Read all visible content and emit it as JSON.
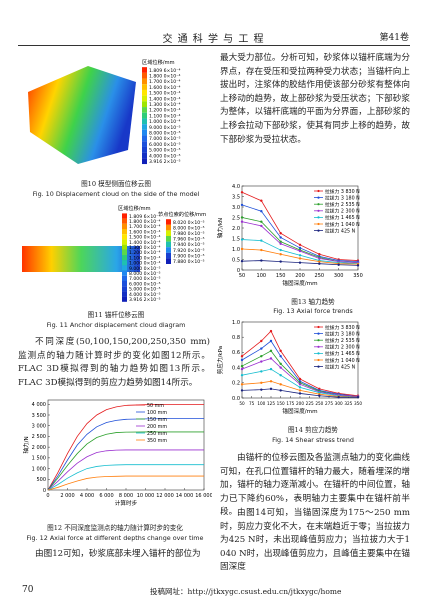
{
  "header": {
    "journal": "交 通 科 学 与 工 程",
    "volume": "第41卷"
  },
  "figures": {
    "fig10": {
      "legend_title": "区域位移/mm",
      "legend_values": [
        "1.809 6×10⁻⁴",
        "1.800 0×10⁻⁴",
        "1.700 0×10⁻⁴",
        "1.600 0×10⁻⁴",
        "1.500 0×10⁻⁴",
        "1.400 0×10⁻⁴",
        "1.300 0×10⁻⁴",
        "1.200 0×10⁻⁴",
        "1.100 0×10⁻⁴",
        "1.000 0×10⁻⁴",
        "9.000 0×10⁻⁵",
        "8.000 0×10⁻⁵",
        "7.000 0×10⁻⁵",
        "6.000 0×10⁻⁵",
        "5.000 0×10⁻⁵",
        "4.000 0×10⁻⁵",
        "3.916 2×10⁻⁵"
      ],
      "caption_cn": "图10  模型侧面位移云图",
      "caption_en": "Fig. 10  Displacement cloud on the side of the model"
    },
    "fig11": {
      "legend_title": "区域位移/mm",
      "legend_values": [
        "1.809 6×10⁻⁴",
        "1.800 0×10⁻⁴",
        "1.700 0×10⁻⁴",
        "1.600 0×10⁻⁴",
        "1.500 0×10⁻⁴",
        "1.400 0×10⁻⁴",
        "1.300 0×10⁻⁴",
        "1.200 0×10⁻⁴",
        "1.100 0×10⁻⁴",
        "1.000 0×10⁻⁴",
        "9.000 0×10⁻⁵",
        "8.000 0×10⁻⁵",
        "7.000 0×10⁻⁵",
        "6.000 0×10⁻⁵",
        "5.000 0×10⁻⁵",
        "4.000 0×10⁻⁵",
        "3.916 2×10⁻⁵"
      ],
      "legend2_title": "节点位索的位移/mm",
      "legend2_values": [
        "8.020 0×10⁻⁵",
        "8.000 0×10⁻⁵",
        "7.980 0×10⁻⁵",
        "7.960 0×10⁻⁵",
        "7.940 0×10⁻⁵",
        "7.920 0×10⁻⁵",
        "7.900 0×10⁻⁵",
        "7.880 0×10⁻⁵"
      ],
      "caption_cn": "图11  锚杆位移云图",
      "caption_en": "Fig. 11  Anchor displacement cloud diagram"
    }
  },
  "paragraphs": {
    "left_1": "不同深度(50,100,150,200,250,350 mm)监测点的轴力随计算时步的变化如图12所示。FLAC 3D模拟得到的轴力趋势如图13所示。FLAC 3D模拟得到的剪应力趋势如图14所示。",
    "left_2": "由图12可知，砂浆底部未埋入锚杆的部位为",
    "right_1": "最大受力部位。分析可知，砂浆体以锚杆底端为分界点，存在受压和受拉两种受力状态；当锚杆向上拔出时，注浆体的胶结作用使该部分砂浆有整体向上移动的趋势，故上部砂浆为受压状态；下部砂浆为整体，以锚杆底端的平面为分界面，上部砂浆的上移会拉动下部砂浆，使其有同步上移的趋势，故下部砂浆为受拉状态。",
    "right_2": "由锚杆的位移云图及各监测点轴力的变化曲线可知，在孔口位置锚杆的轴力最大，随着埋深的增加，锚杆的轴力逐渐减小。在锚杆的中间位置，轴力已下降约60%，表明轴力主要集中在锚杆前半段。",
    "right_3": "由图14可知，当锚固深度为175～250 mm时，剪应力变化不大，在末端趋近于零；当拉拔力为425 N时，未出现峰值剪应力；当拉拔力大于1 040 N时，出现峰值剪应力，且峰值主要集中在锚固深度"
  },
  "chart_data": [
    {
      "type": "line",
      "caption_cn": "图12  不同深度监测点的轴力随计算时步的变化",
      "caption_en": "Fig. 12  Axial force at different depths change over time",
      "x_label": "计算时步",
      "y_label": "轴力/N",
      "markers": false,
      "legend": "upper center",
      "x": [
        0,
        1000,
        2000,
        3000,
        4000,
        5000,
        6000,
        7000,
        8000,
        10000,
        12000,
        14000,
        16000
      ],
      "xlim": [
        0,
        16000
      ],
      "xticks": [
        0,
        {
          "value": 2000,
          "label": "2 000"
        },
        {
          "value": 4000,
          "label": "4 000"
        },
        {
          "value": 6000,
          "label": "6 000"
        },
        {
          "value": 8000,
          "label": "8 000"
        },
        {
          "value": 10000,
          "label": "10 000"
        },
        {
          "value": 12000,
          "label": "12 000"
        },
        {
          "value": 14000,
          "label": "14 000"
        },
        {
          "value": 16000,
          "label": "16 000"
        }
      ],
      "ylim": [
        0,
        4200
      ],
      "yticks": [
        0,
        500,
        {
          "value": 1000,
          "label": "1 000"
        },
        {
          "value": 1500,
          "label": "1 500"
        },
        {
          "value": 2000,
          "label": "2 000"
        },
        {
          "value": 2500,
          "label": "2 500"
        },
        {
          "value": 3000,
          "label": "3 000"
        },
        {
          "value": 3500,
          "label": "3 500"
        },
        {
          "value": 4000,
          "label": "4 000"
        }
      ],
      "series": [
        {
          "name": "50 mm",
          "color": "#e41a1c",
          "values": [
            0,
            800,
            1700,
            2500,
            3100,
            3500,
            3750,
            3880,
            3950,
            3980,
            3990,
            3990,
            3990
          ]
        },
        {
          "name": "100 mm",
          "color": "#1f4fd8",
          "values": [
            0,
            650,
            1400,
            2100,
            2600,
            2950,
            3150,
            3250,
            3300,
            3320,
            3330,
            3330,
            3330
          ]
        },
        {
          "name": "150 mm",
          "color": "#2ca02c",
          "values": [
            0,
            550,
            1150,
            1700,
            2150,
            2450,
            2600,
            2680,
            2700,
            2710,
            2710,
            2710,
            2710
          ]
        },
        {
          "name": "200 mm",
          "color": "#9b30d0",
          "values": [
            0,
            400,
            850,
            1250,
            1550,
            1750,
            1830,
            1860,
            1870,
            1870,
            1870,
            1870,
            1870
          ]
        },
        {
          "name": "250 mm",
          "color": "#17becf",
          "values": [
            0,
            250,
            550,
            800,
            1000,
            1100,
            1150,
            1170,
            1180,
            1180,
            1180,
            1180,
            1180
          ]
        },
        {
          "name": "350 mm",
          "color": "#ff7f0e",
          "values": [
            0,
            120,
            280,
            420,
            540,
            600,
            630,
            640,
            650,
            650,
            650,
            650,
            650
          ]
        }
      ]
    },
    {
      "type": "line",
      "caption_cn": "图13  轴力趋势",
      "caption_en": "Fig. 13  Axial force trends",
      "x_label": "锚固深度/mm",
      "y_label": "轴力/kN",
      "markers": true,
      "legend": "upper right",
      "x": [
        50,
        100,
        150,
        200,
        250,
        300,
        350
      ],
      "xlim": [
        50,
        350
      ],
      "xticks": [
        50,
        100,
        150,
        200,
        250,
        300,
        350
      ],
      "ylim": [
        0,
        4
      ],
      "yticks": [
        0,
        0.5,
        {
          "value": 1,
          "label": "1.0"
        },
        1.5,
        {
          "value": 2,
          "label": "2.0"
        },
        2.5,
        {
          "value": 3,
          "label": "3.0"
        },
        3.5,
        {
          "value": 4,
          "label": "4.0"
        }
      ],
      "series": [
        {
          "name": "拉拔力 3 830 N",
          "color": "#e41a1c",
          "values": [
            3.7,
            3.3,
            1.75,
            1.2,
            0.75,
            0.5,
            0.45
          ]
        },
        {
          "name": "拉拔力 3 180 N",
          "color": "#1f4fd8",
          "values": [
            3.1,
            2.8,
            1.55,
            1.05,
            0.65,
            0.45,
            0.4
          ]
        },
        {
          "name": "拉拔力 2 535 N",
          "color": "#2ca02c",
          "values": [
            2.5,
            2.3,
            1.35,
            0.95,
            0.6,
            0.4,
            0.35
          ]
        },
        {
          "name": "拉拔力 2 300 N",
          "color": "#9b30d0",
          "values": [
            2.3,
            2.1,
            1.25,
            0.9,
            0.55,
            0.4,
            0.35
          ]
        },
        {
          "name": "拉拔力 1 465 N",
          "color": "#17becf",
          "values": [
            1.45,
            1.4,
            0.95,
            0.7,
            0.45,
            0.35,
            0.3
          ]
        },
        {
          "name": "拉拔力 1 040 N",
          "color": "#ff7f0e",
          "values": [
            1.0,
            0.95,
            0.75,
            0.55,
            0.4,
            0.3,
            0.28
          ]
        },
        {
          "name": "拉拔力  425 N",
          "color": "#1a237e",
          "values": [
            0.42,
            0.45,
            0.4,
            0.35,
            0.3,
            0.25,
            0.22
          ]
        }
      ]
    },
    {
      "type": "line",
      "caption_cn": "图14  剪应力趋势",
      "caption_en": "Fig. 14  Shear stress trend",
      "x_label": "锚固深度/mm",
      "y_label": "剪应力/kPa",
      "markers": true,
      "legend": "upper right",
      "x": [
        50,
        100,
        125,
        150,
        200,
        250,
        300,
        350
      ],
      "xlim": [
        50,
        350
      ],
      "xticks": [
        50,
        75,
        100,
        125,
        150,
        175,
        200,
        225,
        250,
        275,
        300,
        325,
        350
      ],
      "ylim": [
        0,
        1
      ],
      "yticks": [
        {
          "value": 0,
          "label": "0.0"
        },
        0.2,
        0.4,
        0.6,
        0.8,
        {
          "value": 1,
          "label": "1.0"
        }
      ],
      "series": [
        {
          "name": "拉拔力 3 830 N",
          "color": "#e41a1c",
          "values": [
            0.55,
            0.75,
            0.88,
            0.62,
            0.25,
            0.12,
            0.06,
            0.03
          ]
        },
        {
          "name": "拉拔力 3 180 N",
          "color": "#1f4fd8",
          "values": [
            0.5,
            0.65,
            0.75,
            0.55,
            0.22,
            0.1,
            0.05,
            0.02
          ]
        },
        {
          "name": "拉拔力 2 535 N",
          "color": "#2ca02c",
          "values": [
            0.42,
            0.55,
            0.62,
            0.45,
            0.2,
            0.09,
            0.04,
            0.02
          ]
        },
        {
          "name": "拉拔力 2 300 N",
          "color": "#9b30d0",
          "values": [
            0.38,
            0.48,
            0.52,
            0.4,
            0.18,
            0.08,
            0.04,
            0.02
          ]
        },
        {
          "name": "拉拔力 1 465 N",
          "color": "#17becf",
          "values": [
            0.3,
            0.35,
            0.38,
            0.3,
            0.14,
            0.07,
            0.03,
            0.01
          ]
        },
        {
          "name": "拉拔力 1 040 N",
          "color": "#ff7f0e",
          "values": [
            0.18,
            0.2,
            0.22,
            0.18,
            0.1,
            0.05,
            0.02,
            0.01
          ]
        },
        {
          "name": "拉拔力  425 N",
          "color": "#1a237e",
          "values": [
            0.1,
            0.11,
            0.12,
            0.1,
            0.06,
            0.03,
            0.01,
            0.01
          ]
        }
      ]
    }
  ],
  "footer": {
    "page": "70",
    "url": "投稿网址：http://jtkxygc.csust.edu.cn/jtkxygc/home"
  }
}
